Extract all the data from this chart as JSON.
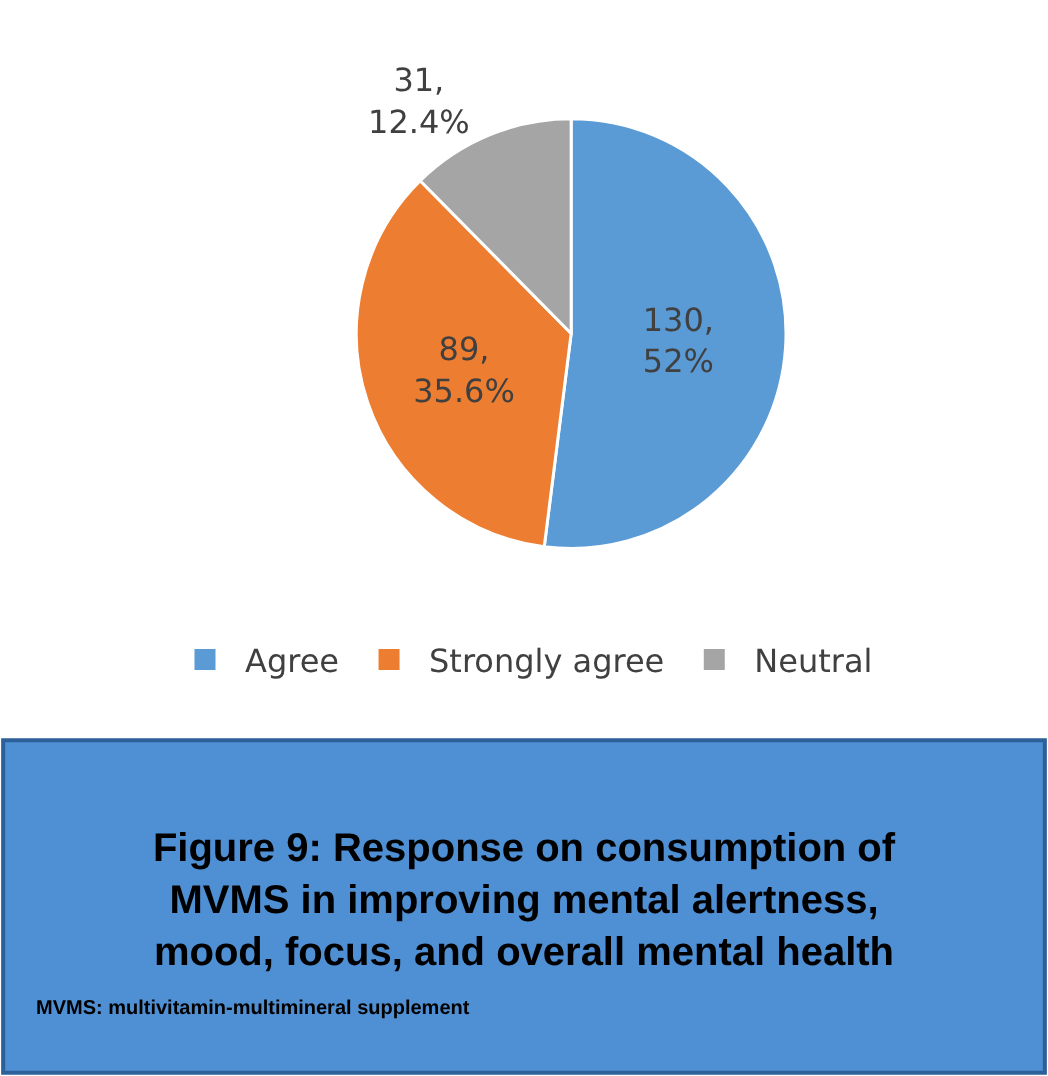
{
  "chart_data": {
    "type": "pie",
    "title": "Figure 9: Response on consumption of\nMVMS in improving mental alertness,\nmood, focus, and overall mental health",
    "categories": [
      "Agree",
      "Strongly agree",
      "Neutral"
    ],
    "values": [
      130,
      89,
      31
    ],
    "colors": [
      "#5b9bd5",
      "#ed7d31",
      "#a5a5a5"
    ],
    "value_labels": [
      "130,\n52%",
      "89,\n35.6%",
      "31,\n12.4%"
    ],
    "legend": "bottom",
    "annotations": [
      "MVMS: multivitamin-multimineral supplement"
    ]
  }
}
